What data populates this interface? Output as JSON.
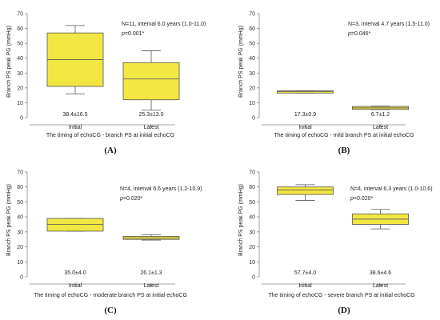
{
  "figure": {
    "box_fill": "#F2E642",
    "box_stroke": "#555555",
    "axis_color": "#888888"
  },
  "chart_data": [
    {
      "type": "box",
      "panel": "(A)",
      "xlabel": "The timing of echoCG - branch PS at initial echoCG",
      "ylabel": "Branch PS peak PG (mmHg)",
      "ylim": [
        0,
        70
      ],
      "yticks": [
        0,
        10,
        20,
        30,
        40,
        50,
        60,
        70
      ],
      "categories": [
        "Initial",
        "Latest"
      ],
      "annotation": "N=11, interval 6.0 years (1.0-11.0)",
      "p_prefix": "p",
      "p_value": "=0.001*",
      "boxes": [
        {
          "min": 16,
          "q1": 21,
          "median": 39,
          "q3": 57,
          "max": 62
        },
        {
          "min": 5,
          "q1": 12,
          "median": 26,
          "q3": 37,
          "max": 45
        }
      ],
      "stats": [
        "38.4±16.5",
        "25.3±13.0"
      ]
    },
    {
      "type": "box",
      "panel": "(B)",
      "xlabel": "The timing of echoCG - mild branch PS at initial echoCG",
      "ylabel": "Branch PS peak PG (mmHg)",
      "ylim": [
        0,
        70
      ],
      "yticks": [
        0,
        10,
        20,
        30,
        40,
        50,
        60,
        70
      ],
      "categories": [
        "Initial",
        "Latest"
      ],
      "annotation": "N=3, interval 4.7 years (1.5-11.0)",
      "p_prefix": "p",
      "p_value": "=0.046*",
      "boxes": [
        {
          "min": 16.5,
          "q1": 16.5,
          "median": 17.5,
          "q3": 18,
          "max": 18
        },
        {
          "min": 5.3,
          "q1": 5.5,
          "median": 6.5,
          "q3": 7.5,
          "max": 7.8
        }
      ],
      "stats": [
        "17.3±0.9",
        "6.7±1.2"
      ]
    },
    {
      "type": "box",
      "panel": "(C)",
      "xlabel": "The timing of echoCG - moderate branch PS at initial echoCG",
      "ylabel": "Branch PS peak PG (mmHg)",
      "ylim": [
        0,
        70
      ],
      "yticks": [
        0,
        10,
        20,
        30,
        40,
        50,
        60,
        70
      ],
      "categories": [
        "Initial",
        "Latest"
      ],
      "annotation": "N=4, interval 6.6 years (1.2-10.9)",
      "p_prefix": "p",
      "p_value": "=0.020*",
      "boxes": [
        {
          "min": 30.5,
          "q1": 30.5,
          "median": 35,
          "q3": 39,
          "max": 39
        },
        {
          "min": 24.5,
          "q1": 25,
          "median": 26,
          "q3": 27,
          "max": 28
        }
      ],
      "stats": [
        "35.0±4.0",
        "26.1±1.3"
      ]
    },
    {
      "type": "box",
      "panel": "(D)",
      "xlabel": "The timing of echoCG - severe branch PS at initial echoCG",
      "ylabel": "Branch PS peak PG (mmHg)",
      "ylim": [
        0,
        70
      ],
      "yticks": [
        0,
        10,
        20,
        30,
        40,
        50,
        60,
        70
      ],
      "categories": [
        "Initial",
        "Latest"
      ],
      "annotation": "N=4, interval 6.3 years (1.0-10.6)",
      "p_prefix": "p",
      "p_value": "=0.020*",
      "boxes": [
        {
          "min": 51,
          "q1": 55,
          "median": 58,
          "q3": 60,
          "max": 61.5
        },
        {
          "min": 32,
          "q1": 35,
          "median": 38.5,
          "q3": 42,
          "max": 45
        }
      ],
      "stats": [
        "57.7±4.0",
        "38.6±4.6"
      ]
    }
  ]
}
